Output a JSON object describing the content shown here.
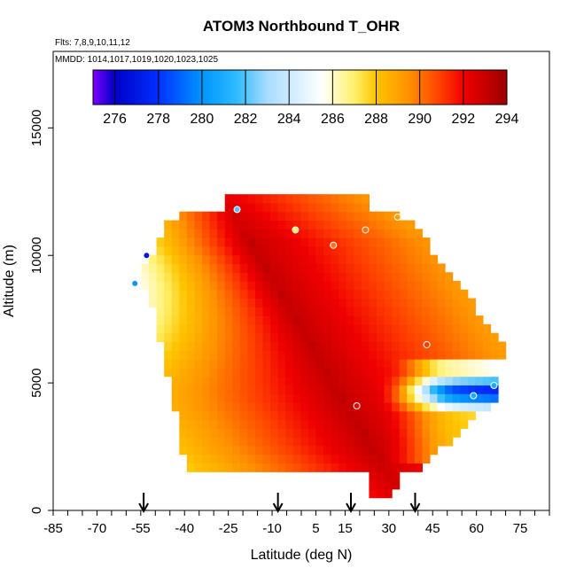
{
  "chart_data": {
    "type": "heatmap",
    "title": "ATOM3 Northbound T_OHR",
    "annotations": [
      "Flts: 7,8,9,10,11,12",
      "MMDD: 1014,1017,1019,1020,1023,1025"
    ],
    "xlabel": "Latitude (deg N)",
    "ylabel": "Altitude (m)",
    "xlim": [
      -85,
      85
    ],
    "ylim": [
      0,
      18000
    ],
    "x_ticks": [
      -85,
      -70,
      -55,
      -40,
      -25,
      -10,
      5,
      15,
      30,
      45,
      60,
      75
    ],
    "y_ticks": [
      0,
      5000,
      10000,
      15000
    ],
    "grid": false,
    "colorbar": {
      "min": 275,
      "max": 294,
      "ticks": [
        276,
        278,
        280,
        282,
        284,
        286,
        288,
        290,
        292,
        294
      ],
      "placement": "top",
      "colors": [
        {
          "v": 275.0,
          "c": "#7d00ff"
        },
        {
          "v": 276.0,
          "c": "#0000c8"
        },
        {
          "v": 278.0,
          "c": "#0030ff"
        },
        {
          "v": 280.0,
          "c": "#0096ff"
        },
        {
          "v": 281.5,
          "c": "#2ab8ff"
        },
        {
          "v": 283.0,
          "c": "#a8dcff"
        },
        {
          "v": 285.5,
          "c": "#ffffff"
        },
        {
          "v": 287.0,
          "c": "#fff06a"
        },
        {
          "v": 288.0,
          "c": "#ffc400"
        },
        {
          "v": 289.5,
          "c": "#ff9100"
        },
        {
          "v": 291.0,
          "c": "#ff3c00"
        },
        {
          "v": 292.0,
          "c": "#f00000"
        },
        {
          "v": 293.0,
          "c": "#c80000"
        },
        {
          "v": 294.0,
          "c": "#9a0000"
        }
      ]
    },
    "flight_path_markers": [
      {
        "lat": -57,
        "alt": 8900,
        "value": 280
      },
      {
        "lat": -53,
        "alt": 10000,
        "value": 277
      },
      {
        "lat": -22,
        "alt": 11800,
        "value": 282
      },
      {
        "lat": -2,
        "alt": 11000,
        "value": 287
      },
      {
        "lat": 11,
        "alt": 10400,
        "value": 290
      },
      {
        "lat": 22,
        "alt": 11000,
        "value": 290
      },
      {
        "lat": 33,
        "alt": 11500,
        "value": 289
      },
      {
        "lat": 19,
        "alt": 4100,
        "value": 292
      },
      {
        "lat": 43,
        "alt": 6500,
        "value": 291
      },
      {
        "lat": 59,
        "alt": 4500,
        "value": 281
      },
      {
        "lat": 66,
        "alt": 4900,
        "value": 281
      }
    ],
    "arrows_lat": [
      -54,
      -8,
      17,
      39
    ]
  }
}
